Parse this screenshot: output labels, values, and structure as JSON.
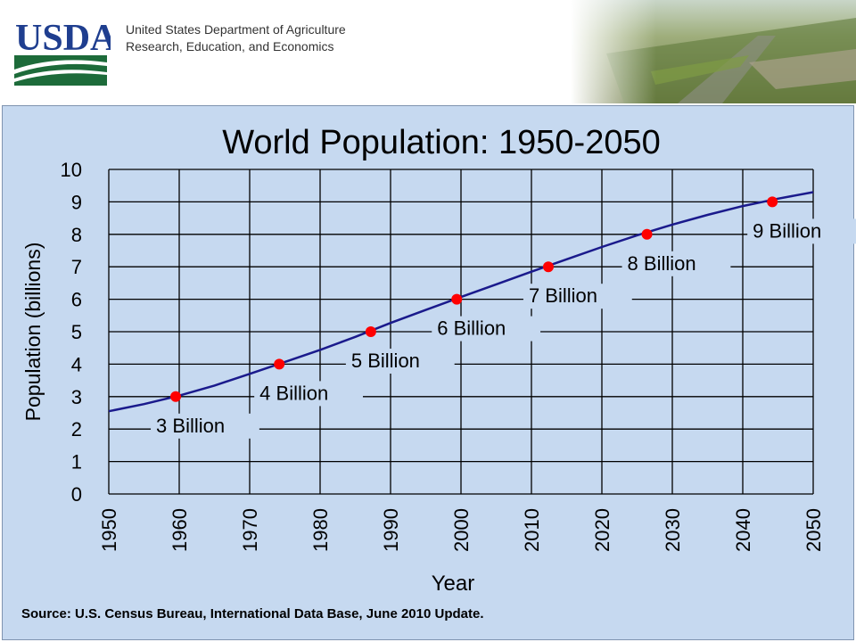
{
  "header": {
    "logo_text": "USDA",
    "agency_line1": "United States Department of Agriculture",
    "agency_line2": "Research, Education, and Economics",
    "photo_icon": "aerial-landscape-photo"
  },
  "colors": {
    "panel_bg": "#c6d9f0",
    "line": "#1a1a8c",
    "marker": "#ff0000",
    "usda_blue": "#1f3e8f",
    "usda_green": "#1d6b3a"
  },
  "chart_data": {
    "type": "line",
    "title": "World Population: 1950-2050",
    "xlabel": "Year",
    "ylabel": "Population  (billions)",
    "xlim": [
      1950,
      2050
    ],
    "ylim": [
      0,
      10
    ],
    "x_ticks": [
      "1950",
      "1960",
      "1970",
      "1980",
      "1990",
      "2000",
      "2010",
      "2020",
      "2030",
      "2040",
      "2050"
    ],
    "y_ticks": [
      "0",
      "1",
      "2",
      "3",
      "4",
      "5",
      "6",
      "7",
      "8",
      "9",
      "10"
    ],
    "grid": true,
    "series": [
      {
        "x": [
          1950,
          1955,
          1960,
          1965,
          1970,
          1975,
          1980,
          1985,
          1990,
          1995,
          2000,
          2005,
          2010,
          2015,
          2020,
          2025,
          2030,
          2035,
          2040,
          2045,
          2050
        ],
        "values": [
          2.55,
          2.77,
          3.03,
          3.34,
          3.7,
          4.07,
          4.44,
          4.84,
          5.27,
          5.67,
          6.07,
          6.46,
          6.85,
          7.23,
          7.61,
          7.97,
          8.3,
          8.6,
          8.87,
          9.1,
          9.3
        ]
      }
    ],
    "milestones": [
      {
        "x": 1959.5,
        "y": 3,
        "label": "3 Billion"
      },
      {
        "x": 1974.2,
        "y": 4,
        "label": "4 Billion"
      },
      {
        "x": 1987.2,
        "y": 5,
        "label": "5 Billion"
      },
      {
        "x": 1999.4,
        "y": 6,
        "label": "6 Billion"
      },
      {
        "x": 2012.4,
        "y": 7,
        "label": "7 Billion"
      },
      {
        "x": 2026.4,
        "y": 8,
        "label": "8 Billion"
      },
      {
        "x": 2044.2,
        "y": 9,
        "label": "9 Billion"
      }
    ],
    "source": "Source: U.S. Census Bureau, International Data Base, June 2010 Update."
  }
}
